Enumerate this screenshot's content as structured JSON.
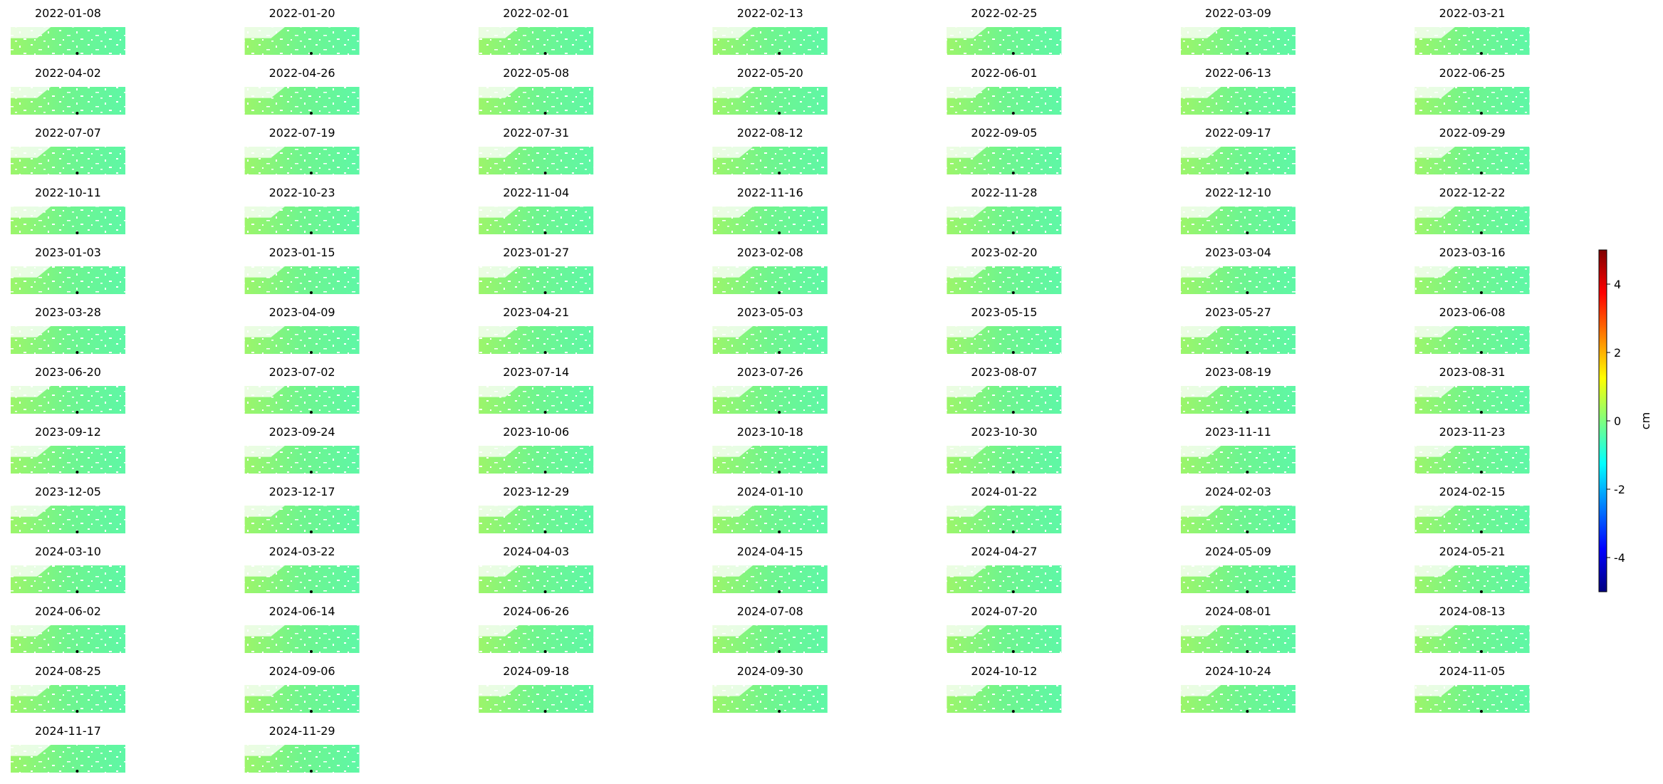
{
  "chart_data": {
    "type": "heatmap",
    "panels": [
      "2022-01-08",
      "2022-01-20",
      "2022-02-01",
      "2022-02-13",
      "2022-02-25",
      "2022-03-09",
      "2022-03-21",
      "2022-04-02",
      "2022-04-26",
      "2022-05-08",
      "2022-05-20",
      "2022-06-01",
      "2022-06-13",
      "2022-06-25",
      "2022-07-07",
      "2022-07-19",
      "2022-07-31",
      "2022-08-12",
      "2022-09-05",
      "2022-09-17",
      "2022-09-29",
      "2022-10-11",
      "2022-10-23",
      "2022-11-04",
      "2022-11-16",
      "2022-11-28",
      "2022-12-10",
      "2022-12-22",
      "2023-01-03",
      "2023-01-15",
      "2023-01-27",
      "2023-02-08",
      "2023-02-20",
      "2023-03-04",
      "2023-03-16",
      "2023-03-28",
      "2023-04-09",
      "2023-04-21",
      "2023-05-03",
      "2023-05-15",
      "2023-05-27",
      "2023-06-08",
      "2023-06-20",
      "2023-07-02",
      "2023-07-14",
      "2023-07-26",
      "2023-08-07",
      "2023-08-19",
      "2023-08-31",
      "2023-09-12",
      "2023-09-24",
      "2023-10-06",
      "2023-10-18",
      "2023-10-30",
      "2023-11-11",
      "2023-11-23",
      "2023-12-05",
      "2023-12-17",
      "2023-12-29",
      "2024-01-10",
      "2024-01-22",
      "2024-02-03",
      "2024-02-15",
      "2024-03-10",
      "2024-03-22",
      "2024-04-03",
      "2024-04-15",
      "2024-04-27",
      "2024-05-09",
      "2024-05-21",
      "2024-06-02",
      "2024-06-14",
      "2024-06-26",
      "2024-07-08",
      "2024-07-20",
      "2024-08-01",
      "2024-08-13",
      "2024-08-25",
      "2024-09-06",
      "2024-09-18",
      "2024-09-30",
      "2024-10-12",
      "2024-10-24",
      "2024-11-05",
      "2024-11-17",
      "2024-11-29"
    ],
    "colorbar": {
      "label": "cm",
      "lim": [
        -5,
        5
      ],
      "ticks": [
        -4,
        -2,
        0,
        2,
        4
      ],
      "colormap": "jet"
    }
  }
}
